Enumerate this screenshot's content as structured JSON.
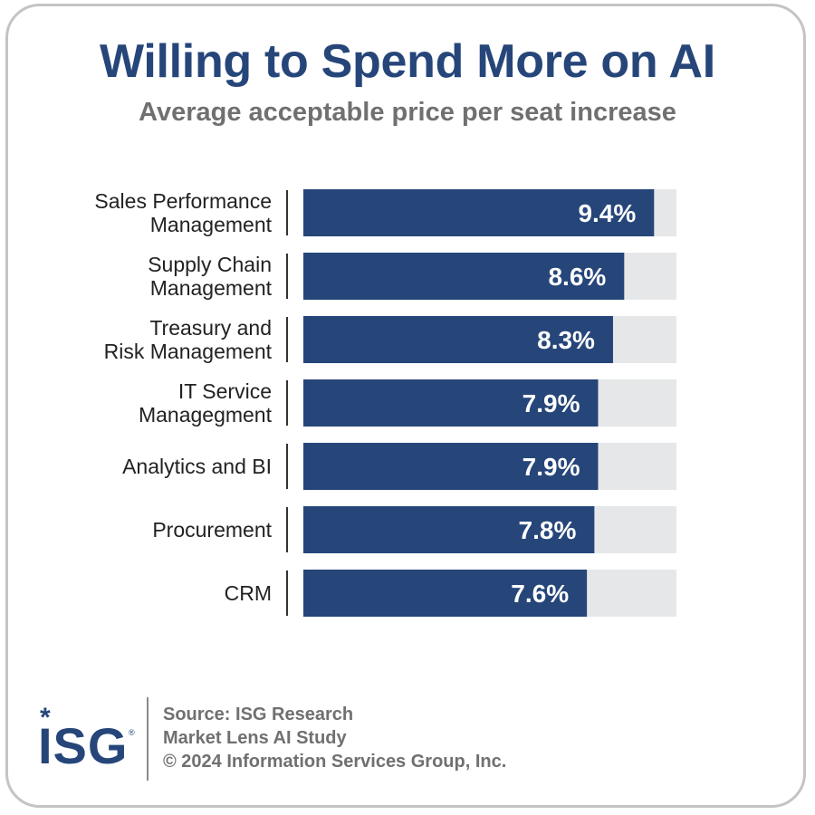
{
  "header": {
    "title": "Willing to Spend More on AI",
    "subtitle": "Average acceptable price per seat increase"
  },
  "colors": {
    "bar": "#26467a",
    "track": "#e6e7e8",
    "title": "#26467a",
    "subtitle": "#707070"
  },
  "chart_data": {
    "type": "bar",
    "orientation": "horizontal",
    "title": "Willing to Spend More on AI",
    "subtitle": "Average acceptable price per seat increase",
    "categories": [
      [
        "Sales Performance",
        "Management"
      ],
      [
        "Supply Chain",
        "Management"
      ],
      [
        "Treasury and",
        "Risk Management"
      ],
      [
        "IT Service",
        "Managegment"
      ],
      [
        "Analytics and BI"
      ],
      [
        "Procurement"
      ],
      [
        "CRM"
      ]
    ],
    "values": [
      9.4,
      8.6,
      8.3,
      7.9,
      7.9,
      7.8,
      7.6
    ],
    "value_labels": [
      "9.4%",
      "8.6%",
      "8.3%",
      "7.9%",
      "7.9%",
      "7.8%",
      "7.6%"
    ],
    "xlim": [
      0,
      10
    ],
    "xlabel": "",
    "ylabel": "",
    "grid": false,
    "legend": "none"
  },
  "footer": {
    "logo_star": "*",
    "logo_text": "ISG",
    "logo_reg": "®",
    "source_lines": [
      "Source: ISG Research",
      "Market Lens AI Study",
      "© 2024 Information Services Group, Inc."
    ]
  }
}
